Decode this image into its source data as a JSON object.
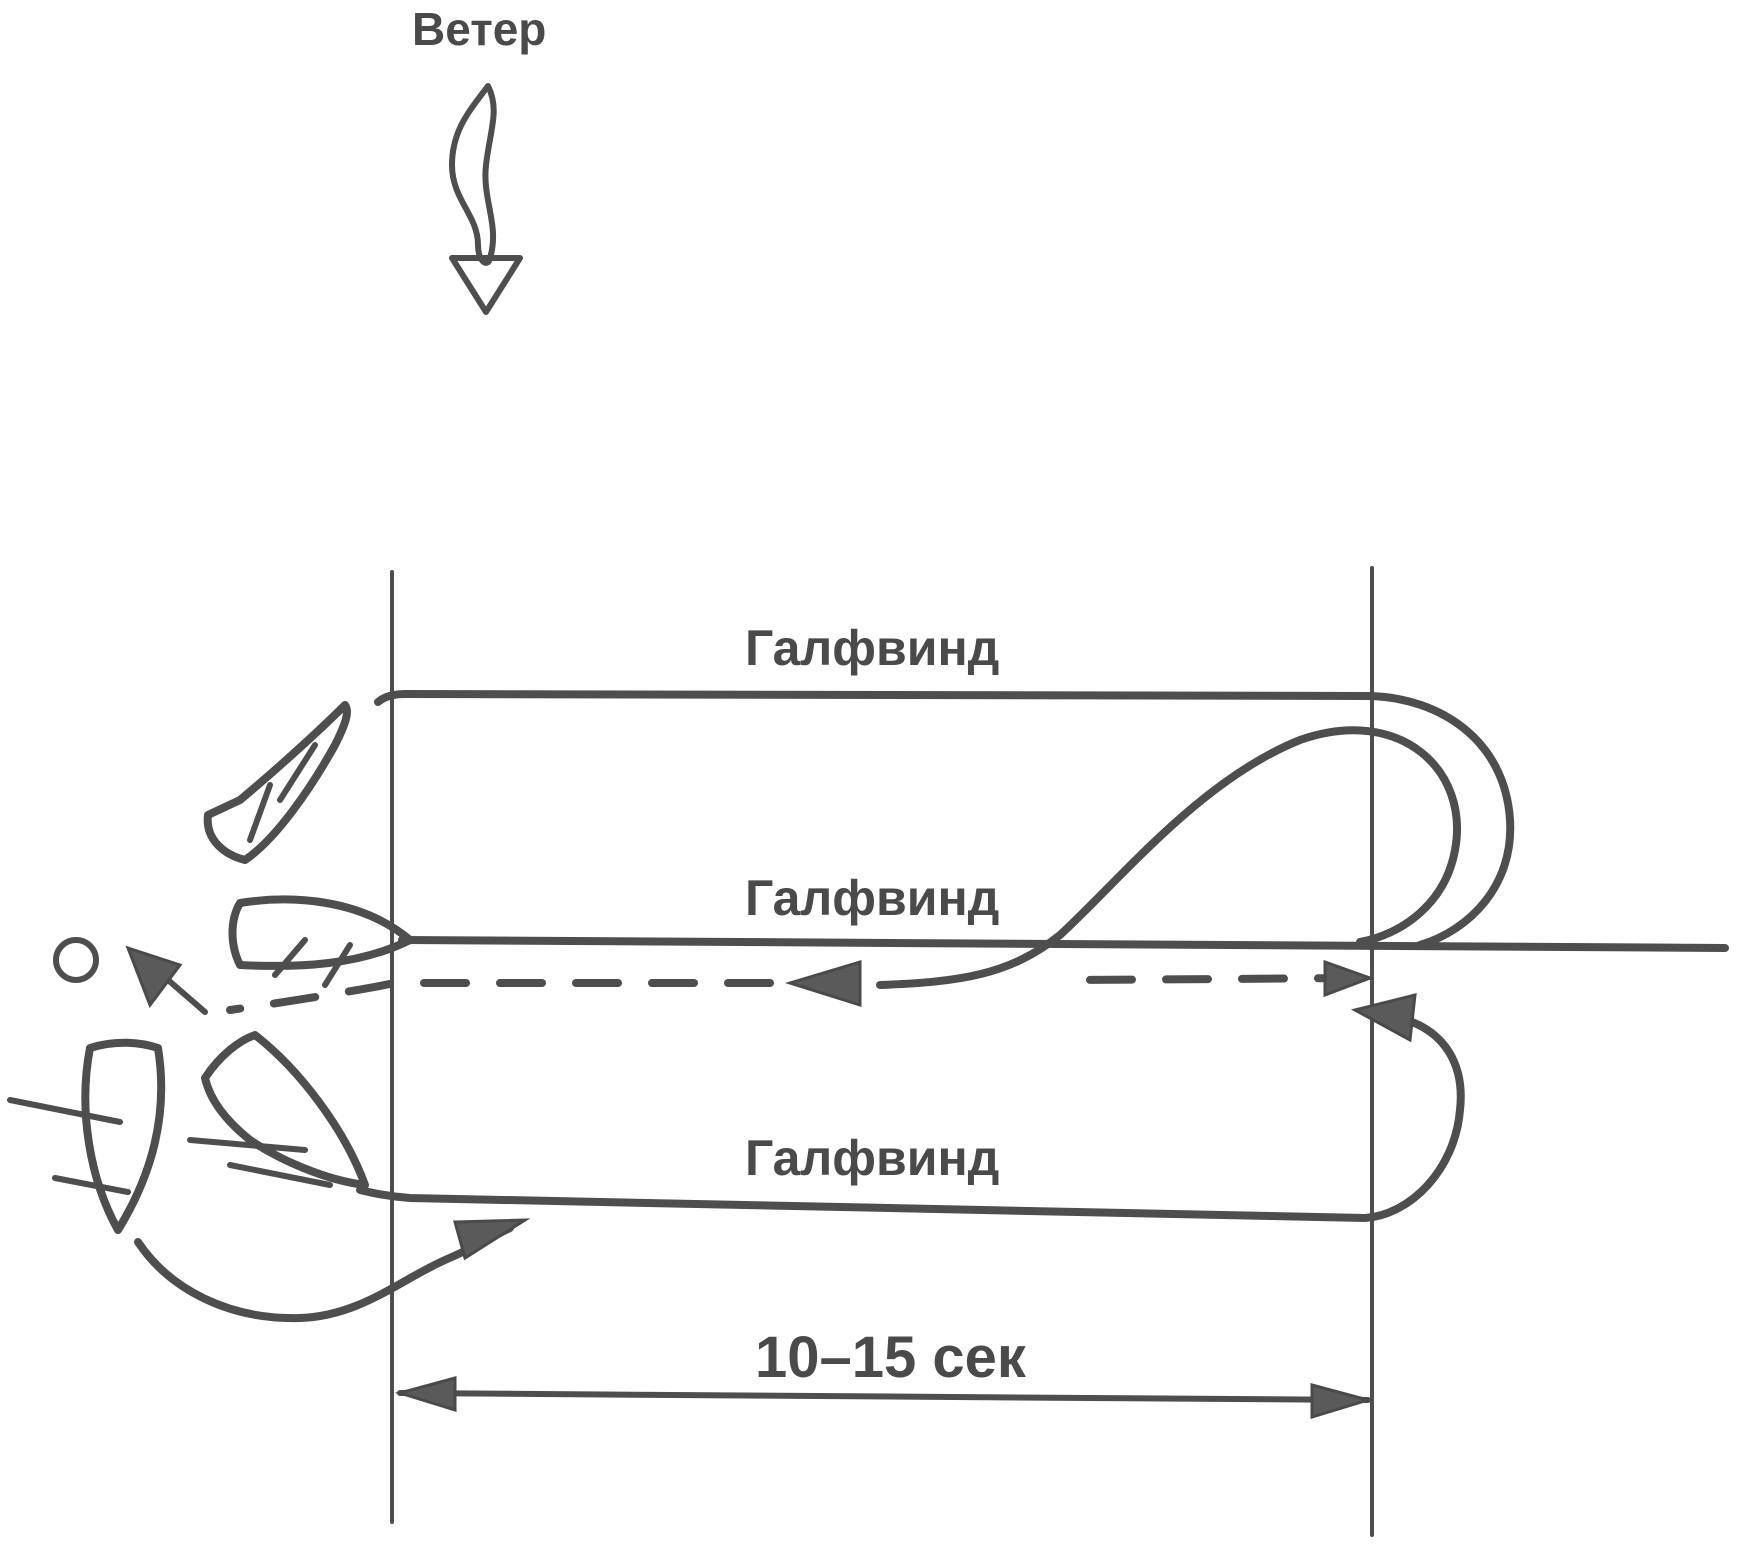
{
  "wind_label": "Ветер",
  "course_labels": [
    "Галфвинд",
    "Галфвинд",
    "Галфвинд"
  ],
  "time_label": "10–15 сек",
  "ink_color": "#4e4e4e",
  "icons": [
    "wind-arrow-icon",
    "boat-icon",
    "mark-buoy-icon"
  ]
}
